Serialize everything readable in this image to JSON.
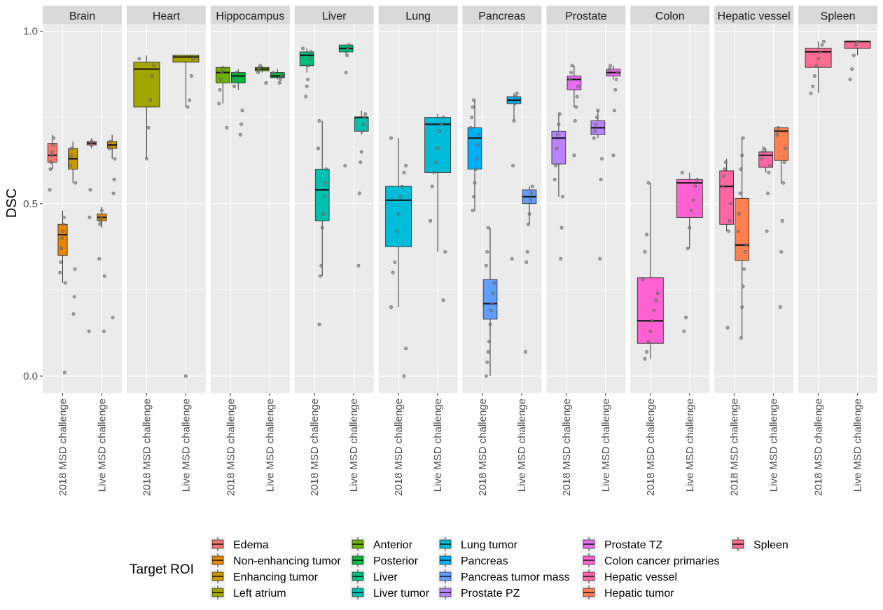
{
  "chart_data": {
    "type": "boxplot",
    "ylabel": "DSC",
    "xlabel": "",
    "ylim": [
      -0.05,
      1.05
    ],
    "yticks": [
      0.0,
      0.5,
      1.0
    ],
    "ytick_labels": [
      "0.0",
      "0.5",
      "1.0"
    ],
    "categories": [
      "2018 MSD challenge",
      "Live MSD challenge"
    ],
    "legend": {
      "title": "Target ROI",
      "position": "bottom",
      "entries": [
        {
          "label": "Edema",
          "color": "#F8766D"
        },
        {
          "label": "Non-enhancing tumor",
          "color": "#E58700"
        },
        {
          "label": "Enhancing tumor",
          "color": "#C99800"
        },
        {
          "label": "Left atrium",
          "color": "#A3A500"
        },
        {
          "label": "Anterior",
          "color": "#6BB100"
        },
        {
          "label": "Posterior",
          "color": "#00BA38"
        },
        {
          "label": "Liver",
          "color": "#00BF7D"
        },
        {
          "label": "Liver tumor",
          "color": "#00C0AF"
        },
        {
          "label": "Lung tumor",
          "color": "#00BCD8"
        },
        {
          "label": "Pancreas",
          "color": "#00B0F6"
        },
        {
          "label": "Pancreas tumor mass",
          "color": "#619CFF"
        },
        {
          "label": "Prostate PZ",
          "color": "#B983FF"
        },
        {
          "label": "Prostate TZ",
          "color": "#E76BF3"
        },
        {
          "label": "Colon cancer primaries",
          "color": "#FD61D1"
        },
        {
          "label": "Hepatic vessel",
          "color": "#FF67A4"
        },
        {
          "label": "Hepatic tumor",
          "color": "#FF7F50"
        },
        {
          "label": "Spleen",
          "color": "#FF6C91"
        }
      ]
    },
    "facets": [
      {
        "name": "Brain",
        "groups": [
          {
            "roi": "Edema",
            "x": "2018 MSD challenge",
            "color": "#F8766D",
            "stats": {
              "lower": 0.6,
              "q1": 0.62,
              "median": 0.64,
              "q3": 0.675,
              "upper": 0.7
            },
            "points": [
              0.54,
              0.6,
              0.62,
              0.64,
              0.65,
              0.67,
              0.69
            ]
          },
          {
            "roi": "Non-enhancing tumor",
            "x": "2018 MSD challenge",
            "color": "#E58700",
            "stats": {
              "lower": 0.27,
              "q1": 0.35,
              "median": 0.41,
              "q3": 0.44,
              "upper": 0.48
            },
            "points": [
              0.01,
              0.27,
              0.3,
              0.33,
              0.37,
              0.4,
              0.42,
              0.44,
              0.46
            ]
          },
          {
            "roi": "Enhancing tumor",
            "x": "2018 MSD challenge",
            "color": "#C99800",
            "stats": {
              "lower": 0.56,
              "q1": 0.6,
              "median": 0.63,
              "q3": 0.66,
              "upper": 0.68
            },
            "points": [
              0.18,
              0.23,
              0.31,
              0.56,
              0.61,
              0.64,
              0.66
            ]
          },
          {
            "roi": "Edema",
            "x": "Live MSD challenge",
            "color": "#F8766D",
            "stats": {
              "lower": 0.66,
              "q1": 0.67,
              "median": 0.675,
              "q3": 0.68,
              "upper": 0.69
            },
            "points": [
              0.13,
              0.46,
              0.54,
              0.67,
              0.68
            ]
          },
          {
            "roi": "Non-enhancing tumor",
            "x": "Live MSD challenge",
            "color": "#E58700",
            "stats": {
              "lower": 0.43,
              "q1": 0.45,
              "median": 0.46,
              "q3": 0.47,
              "upper": 0.49
            },
            "points": [
              0.13,
              0.29,
              0.34,
              0.44,
              0.45,
              0.46,
              0.48
            ]
          },
          {
            "roi": "Enhancing tumor",
            "x": "Live MSD challenge",
            "color": "#C99800",
            "stats": {
              "lower": 0.63,
              "q1": 0.66,
              "median": 0.67,
              "q3": 0.68,
              "upper": 0.7
            },
            "points": [
              0.17,
              0.53,
              0.57,
              0.63,
              0.66,
              0.68
            ]
          }
        ]
      },
      {
        "name": "Heart",
        "groups": [
          {
            "roi": "Left atrium",
            "x": "2018 MSD challenge",
            "color": "#A3A500",
            "stats": {
              "lower": 0.63,
              "q1": 0.78,
              "median": 0.89,
              "q3": 0.91,
              "upper": 0.93
            },
            "points": [
              0.63,
              0.72,
              0.8,
              0.87,
              0.9,
              0.92
            ]
          },
          {
            "roi": "Left atrium",
            "x": "Live MSD challenge",
            "color": "#A3A500",
            "stats": {
              "lower": 0.78,
              "q1": 0.91,
              "median": 0.925,
              "q3": 0.93,
              "upper": 0.93
            },
            "points": [
              0.0,
              0.78,
              0.8,
              0.87,
              0.92
            ]
          }
        ]
      },
      {
        "name": "Hippocampus",
        "groups": [
          {
            "roi": "Anterior",
            "x": "2018 MSD challenge",
            "color": "#6BB100",
            "stats": {
              "lower": 0.79,
              "q1": 0.85,
              "median": 0.88,
              "q3": 0.895,
              "upper": 0.9
            },
            "points": [
              0.72,
              0.79,
              0.83,
              0.86,
              0.88,
              0.89
            ]
          },
          {
            "roi": "Posterior",
            "x": "2018 MSD challenge",
            "color": "#00BA38",
            "stats": {
              "lower": 0.83,
              "q1": 0.85,
              "median": 0.87,
              "q3": 0.88,
              "upper": 0.89
            },
            "points": [
              0.7,
              0.73,
              0.77,
              0.84,
              0.86,
              0.88
            ]
          },
          {
            "roi": "Anterior",
            "x": "Live MSD challenge",
            "color": "#6BB100",
            "stats": {
              "lower": 0.88,
              "q1": 0.885,
              "median": 0.89,
              "q3": 0.895,
              "upper": 0.9
            },
            "points": [
              0.85,
              0.88,
              0.89,
              0.9
            ]
          },
          {
            "roi": "Posterior",
            "x": "Live MSD challenge",
            "color": "#00BA38",
            "stats": {
              "lower": 0.86,
              "q1": 0.865,
              "median": 0.87,
              "q3": 0.88,
              "upper": 0.89
            },
            "points": [
              0.85,
              0.86,
              0.87,
              0.88
            ]
          }
        ]
      },
      {
        "name": "Liver",
        "groups": [
          {
            "roi": "Liver",
            "x": "2018 MSD challenge",
            "color": "#00BF7D",
            "stats": {
              "lower": 0.88,
              "q1": 0.9,
              "median": 0.93,
              "q3": 0.94,
              "upper": 0.95
            },
            "points": [
              0.81,
              0.84,
              0.86,
              0.9,
              0.92,
              0.94,
              0.95
            ]
          },
          {
            "roi": "Liver tumor",
            "x": "2018 MSD challenge",
            "color": "#00C0AF",
            "stats": {
              "lower": 0.29,
              "q1": 0.45,
              "median": 0.54,
              "q3": 0.6,
              "upper": 0.74
            },
            "points": [
              0.15,
              0.29,
              0.32,
              0.43,
              0.47,
              0.52,
              0.56,
              0.6,
              0.66,
              0.74
            ]
          },
          {
            "roi": "Liver",
            "x": "Live MSD challenge",
            "color": "#00BF7D",
            "stats": {
              "lower": 0.93,
              "q1": 0.94,
              "median": 0.95,
              "q3": 0.96,
              "upper": 0.96
            },
            "points": [
              0.61,
              0.88,
              0.93,
              0.95,
              0.96
            ]
          },
          {
            "roi": "Liver tumor",
            "x": "Live MSD challenge",
            "color": "#00C0AF",
            "stats": {
              "lower": 0.7,
              "q1": 0.71,
              "median": 0.75,
              "q3": 0.75,
              "upper": 0.77
            },
            "points": [
              0.32,
              0.53,
              0.62,
              0.65,
              0.71,
              0.73,
              0.75,
              0.76
            ]
          }
        ]
      },
      {
        "name": "Lung",
        "groups": [
          {
            "roi": "Lung tumor",
            "x": "2018 MSD challenge",
            "color": "#00BCD8",
            "stats": {
              "lower": 0.2,
              "q1": 0.375,
              "median": 0.51,
              "q3": 0.55,
              "upper": 0.69
            },
            "points": [
              0.0,
              0.08,
              0.2,
              0.3,
              0.33,
              0.42,
              0.47,
              0.52,
              0.55,
              0.59,
              0.61,
              0.69
            ]
          },
          {
            "roi": "Lung tumor",
            "x": "Live MSD challenge",
            "color": "#00BCD8",
            "stats": {
              "lower": 0.36,
              "q1": 0.59,
              "median": 0.73,
              "q3": 0.75,
              "upper": 0.76
            },
            "points": [
              0.22,
              0.36,
              0.45,
              0.55,
              0.59,
              0.62,
              0.66,
              0.71,
              0.73,
              0.75
            ]
          }
        ]
      },
      {
        "name": "Pancreas",
        "groups": [
          {
            "roi": "Pancreas",
            "x": "2018 MSD challenge",
            "color": "#00B0F6",
            "stats": {
              "lower": 0.48,
              "q1": 0.6,
              "median": 0.69,
              "q3": 0.72,
              "upper": 0.8
            },
            "points": [
              0.48,
              0.52,
              0.56,
              0.6,
              0.63,
              0.67,
              0.7,
              0.72,
              0.75,
              0.78,
              0.8
            ]
          },
          {
            "roi": "Pancreas tumor mass",
            "x": "2018 MSD challenge",
            "color": "#619CFF",
            "stats": {
              "lower": 0.0,
              "q1": 0.165,
              "median": 0.21,
              "q3": 0.28,
              "upper": 0.43
            },
            "points": [
              0.0,
              0.04,
              0.07,
              0.1,
              0.15,
              0.19,
              0.21,
              0.24,
              0.27,
              0.32,
              0.36,
              0.43
            ]
          },
          {
            "roi": "Pancreas",
            "x": "Live MSD challenge",
            "color": "#00B0F6",
            "stats": {
              "lower": 0.74,
              "q1": 0.79,
              "median": 0.8,
              "q3": 0.81,
              "upper": 0.82
            },
            "points": [
              0.34,
              0.61,
              0.74,
              0.79,
              0.81,
              0.82
            ]
          },
          {
            "roi": "Pancreas tumor mass",
            "x": "Live MSD challenge",
            "color": "#619CFF",
            "stats": {
              "lower": 0.44,
              "q1": 0.5,
              "median": 0.52,
              "q3": 0.54,
              "upper": 0.55
            },
            "points": [
              0.07,
              0.33,
              0.36,
              0.44,
              0.47,
              0.51,
              0.53,
              0.55
            ]
          }
        ]
      },
      {
        "name": "Prostate",
        "groups": [
          {
            "roi": "Prostate PZ",
            "x": "2018 MSD challenge",
            "color": "#B983FF",
            "stats": {
              "lower": 0.52,
              "q1": 0.615,
              "median": 0.69,
              "q3": 0.71,
              "upper": 0.76
            },
            "points": [
              0.34,
              0.43,
              0.52,
              0.57,
              0.61,
              0.66,
              0.7,
              0.73,
              0.76
            ]
          },
          {
            "roi": "Prostate TZ",
            "x": "2018 MSD challenge",
            "color": "#E76BF3",
            "stats": {
              "lower": 0.78,
              "q1": 0.83,
              "median": 0.86,
              "q3": 0.87,
              "upper": 0.9
            },
            "points": [
              0.64,
              0.74,
              0.78,
              0.81,
              0.84,
              0.86,
              0.88,
              0.9
            ]
          },
          {
            "roi": "Prostate PZ",
            "x": "Live MSD challenge",
            "color": "#B983FF",
            "stats": {
              "lower": 0.69,
              "q1": 0.7,
              "median": 0.72,
              "q3": 0.74,
              "upper": 0.77
            },
            "points": [
              0.34,
              0.57,
              0.63,
              0.69,
              0.71,
              0.73,
              0.75,
              0.77
            ]
          },
          {
            "roi": "Prostate TZ",
            "x": "Live MSD challenge",
            "color": "#E76BF3",
            "stats": {
              "lower": 0.86,
              "q1": 0.87,
              "median": 0.88,
              "q3": 0.89,
              "upper": 0.9
            },
            "points": [
              0.64,
              0.77,
              0.83,
              0.86,
              0.88,
              0.89,
              0.9
            ]
          }
        ]
      },
      {
        "name": "Colon",
        "groups": [
          {
            "roi": "Colon cancer primaries",
            "x": "2018 MSD challenge",
            "color": "#FD61D1",
            "stats": {
              "lower": 0.05,
              "q1": 0.095,
              "median": 0.16,
              "q3": 0.285,
              "upper": 0.56
            },
            "points": [
              0.05,
              0.07,
              0.1,
              0.13,
              0.16,
              0.19,
              0.22,
              0.24,
              0.28,
              0.36,
              0.41,
              0.56
            ]
          },
          {
            "roi": "Colon cancer primaries",
            "x": "Live MSD challenge",
            "color": "#FD61D1",
            "stats": {
              "lower": 0.37,
              "q1": 0.46,
              "median": 0.56,
              "q3": 0.57,
              "upper": 0.59
            },
            "points": [
              0.13,
              0.17,
              0.37,
              0.43,
              0.48,
              0.51,
              0.55,
              0.57,
              0.59
            ]
          }
        ]
      },
      {
        "name": "Hepatic vessel",
        "groups": [
          {
            "roi": "Hepatic vessel",
            "x": "2018 MSD challenge",
            "color": "#FF67A4",
            "stats": {
              "lower": 0.42,
              "q1": 0.44,
              "median": 0.55,
              "q3": 0.595,
              "upper": 0.63
            },
            "points": [
              0.14,
              0.42,
              0.45,
              0.5,
              0.55,
              0.58,
              0.6,
              0.62
            ]
          },
          {
            "roi": "Hepatic tumor",
            "x": "2018 MSD challenge",
            "color": "#FF7F50",
            "stats": {
              "lower": 0.11,
              "q1": 0.335,
              "median": 0.38,
              "q3": 0.515,
              "upper": 0.69
            },
            "points": [
              0.11,
              0.2,
              0.26,
              0.31,
              0.36,
              0.38,
              0.42,
              0.47,
              0.53,
              0.6,
              0.64,
              0.69
            ]
          },
          {
            "roi": "Hepatic vessel",
            "x": "Live MSD challenge",
            "color": "#FF67A4",
            "stats": {
              "lower": 0.59,
              "q1": 0.605,
              "median": 0.64,
              "q3": 0.65,
              "upper": 0.66
            },
            "points": [
              0.42,
              0.53,
              0.59,
              0.61,
              0.63,
              0.65,
              0.66
            ]
          },
          {
            "roi": "Hepatic tumor",
            "x": "Live MSD challenge",
            "color": "#FF7F50",
            "stats": {
              "lower": 0.56,
              "q1": 0.625,
              "median": 0.71,
              "q3": 0.72,
              "upper": 0.72
            },
            "points": [
              0.2,
              0.36,
              0.45,
              0.56,
              0.62,
              0.66,
              0.7,
              0.72
            ]
          }
        ]
      },
      {
        "name": "Spleen",
        "groups": [
          {
            "roi": "Spleen",
            "x": "2018 MSD challenge",
            "color": "#FF6C91",
            "stats": {
              "lower": 0.82,
              "q1": 0.895,
              "median": 0.94,
              "q3": 0.95,
              "upper": 0.97
            },
            "points": [
              0.82,
              0.84,
              0.87,
              0.9,
              0.92,
              0.94,
              0.96,
              0.97
            ]
          },
          {
            "roi": "Spleen",
            "x": "Live MSD challenge",
            "color": "#FF6C91",
            "stats": {
              "lower": 0.93,
              "q1": 0.95,
              "median": 0.97,
              "q3": 0.97,
              "upper": 0.97
            },
            "points": [
              0.86,
              0.89,
              0.93,
              0.96,
              0.97
            ]
          }
        ]
      }
    ]
  }
}
